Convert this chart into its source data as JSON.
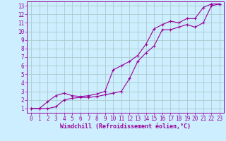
{
  "background_color": "#cceeff",
  "grid_color": "#aacccc",
  "line_color": "#990099",
  "xlabel": "Windchill (Refroidissement éolien,°C)",
  "xlim": [
    -0.5,
    23.5
  ],
  "ylim": [
    0.5,
    13.5
  ],
  "xticks": [
    0,
    1,
    2,
    3,
    4,
    5,
    6,
    7,
    8,
    9,
    10,
    11,
    12,
    13,
    14,
    15,
    16,
    17,
    18,
    19,
    20,
    21,
    22,
    23
  ],
  "yticks": [
    1,
    2,
    3,
    4,
    5,
    6,
    7,
    8,
    9,
    10,
    11,
    12,
    13
  ],
  "line1_x": [
    0,
    1,
    2,
    3,
    4,
    5,
    6,
    7,
    8,
    9,
    10,
    11,
    12,
    13,
    14,
    15,
    16,
    17,
    18,
    19,
    20,
    21,
    22,
    23
  ],
  "line1_y": [
    1.0,
    1.0,
    1.0,
    1.2,
    2.0,
    2.2,
    2.3,
    2.3,
    2.4,
    2.6,
    2.8,
    3.0,
    4.5,
    6.5,
    7.5,
    8.3,
    10.2,
    10.2,
    10.5,
    10.8,
    10.5,
    11.0,
    13.0,
    13.2
  ],
  "line2_x": [
    0,
    1,
    2,
    3,
    4,
    5,
    6,
    7,
    8,
    9,
    10,
    11,
    12,
    13,
    14,
    15,
    16,
    17,
    18,
    19,
    20,
    21,
    22,
    23
  ],
  "line2_y": [
    1.0,
    1.0,
    1.8,
    2.5,
    2.8,
    2.5,
    2.4,
    2.5,
    2.7,
    3.0,
    5.5,
    6.0,
    6.5,
    7.2,
    8.5,
    10.3,
    10.8,
    11.2,
    11.0,
    11.5,
    11.5,
    12.8,
    13.2,
    13.2
  ],
  "tick_fontsize": 5.5,
  "xlabel_fontsize": 6,
  "marker": "+",
  "markersize": 3.5,
  "linewidth": 0.8
}
